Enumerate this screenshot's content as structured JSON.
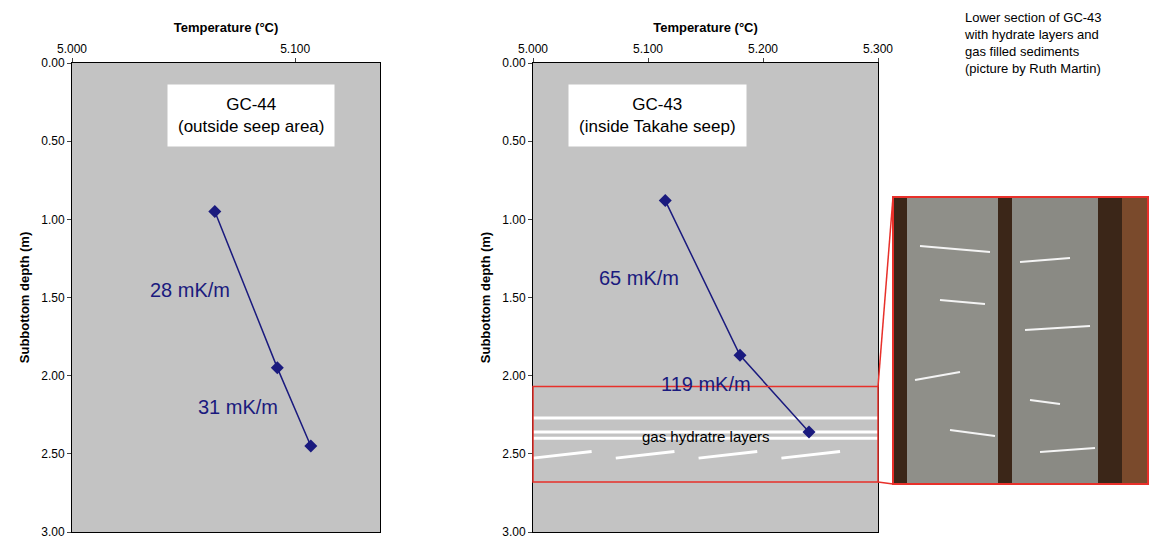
{
  "chart_data": [
    {
      "type": "line",
      "label": [
        "GC-44",
        "(outside seep area)"
      ],
      "xlabel": "Temperature (°C)",
      "ylabel": "Subbottom depth (m)",
      "x": [
        5.064,
        5.092,
        5.107
      ],
      "series": [
        {
          "name": "GC-44",
          "color": "#1a1a7e",
          "marker": "diamond",
          "values": [
            0.95,
            1.95,
            2.45
          ]
        }
      ],
      "segment_labels": [
        "28 mK/m",
        "31 mK/m"
      ],
      "xlim": [
        5.0,
        5.138
      ],
      "xticks": [
        {
          "value": 5.0,
          "label": "5.000"
        },
        {
          "value": 5.1,
          "label": "5.100"
        }
      ],
      "ylim": [
        0,
        3
      ],
      "yticks": [
        {
          "value": 0,
          "label": "0.00"
        },
        {
          "value": 0.5,
          "label": "0.50"
        },
        {
          "value": 1,
          "label": "1.00"
        },
        {
          "value": 1.5,
          "label": "1.50"
        },
        {
          "value": 2,
          "label": "2.00"
        },
        {
          "value": 2.5,
          "label": "2.50"
        },
        {
          "value": 3,
          "label": "3.00"
        }
      ],
      "grid": false
    },
    {
      "type": "line",
      "label": [
        "GC-43",
        "(inside Takahe seep)"
      ],
      "xlabel": "Temperature (°C)",
      "ylabel": "Subbottom depth (m)",
      "x": [
        5.115,
        5.18,
        5.24
      ],
      "series": [
        {
          "name": "GC-43",
          "color": "#1a1a7e",
          "marker": "diamond",
          "values": [
            0.88,
            1.87,
            2.36
          ]
        }
      ],
      "segment_labels": [
        "65 mK/m",
        "119 mK/m"
      ],
      "hydrate_zone": {
        "label": "gas hydratre layers",
        "top": 2.07,
        "bottom": 2.68,
        "layers": [
          2.27,
          2.36,
          2.4
        ],
        "color": "#e8302a"
      },
      "photo_caption": [
        "Lower section of GC-43",
        "with hydrate layers and",
        "gas filled sediments",
        "(picture by Ruth Martin)"
      ],
      "xlim": [
        5.0,
        5.3
      ],
      "xticks": [
        {
          "value": 5.0,
          "label": "5.000"
        },
        {
          "value": 5.1,
          "label": "5.100"
        },
        {
          "value": 5.2,
          "label": "5.200"
        },
        {
          "value": 5.3,
          "label": "5.300"
        }
      ],
      "ylim": [
        0,
        3
      ],
      "yticks": [
        {
          "value": 0,
          "label": "0.00"
        },
        {
          "value": 0.5,
          "label": "0.50"
        },
        {
          "value": 1,
          "label": "1.00"
        },
        {
          "value": 1.5,
          "label": "1.50"
        },
        {
          "value": 2,
          "label": "2.00"
        },
        {
          "value": 2.5,
          "label": "2.50"
        },
        {
          "value": 3,
          "label": "3.00"
        }
      ],
      "grid": false
    }
  ]
}
